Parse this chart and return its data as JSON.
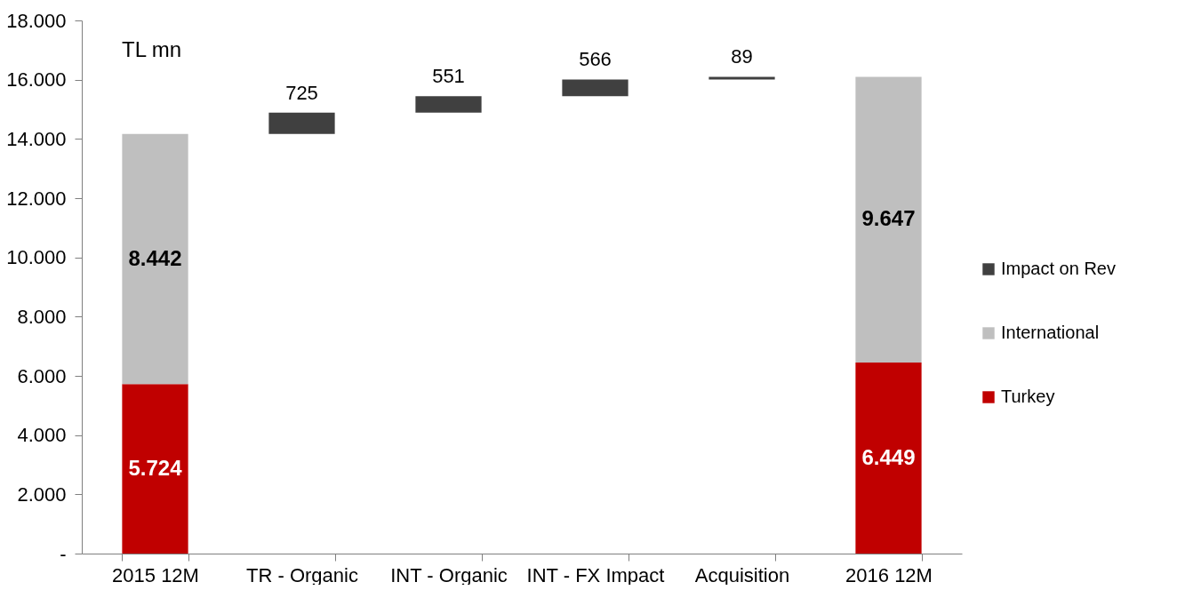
{
  "chart_data": {
    "type": "bar",
    "stacked": true,
    "categories": [
      "2015 12M",
      "TR - Organic",
      "INT - Organic",
      "INT - FX Impact",
      "Acquisition",
      "2016 12M"
    ],
    "series": [
      {
        "name": "Turkey",
        "color": "#c00000",
        "values": [
          5724,
          null,
          null,
          null,
          null,
          6449
        ],
        "value_labels": [
          "5.724",
          null,
          null,
          null,
          null,
          "6.449"
        ]
      },
      {
        "name": "International",
        "color": "#bfbfbf",
        "values": [
          8442,
          null,
          null,
          null,
          null,
          9647
        ],
        "value_labels": [
          "8.442",
          null,
          null,
          null,
          null,
          "9.647"
        ]
      },
      {
        "name": "Impact on Rev",
        "color": "#404040",
        "values": [
          null,
          725,
          551,
          566,
          89,
          null
        ],
        "base": [
          null,
          14166,
          14891,
          15442,
          16008,
          null
        ],
        "value_labels": [
          null,
          "725",
          "551",
          "566",
          "89",
          null
        ]
      }
    ],
    "ylim": [
      0,
      18000
    ],
    "yticks": [
      {
        "value": 0,
        "label": "-"
      },
      {
        "value": 2000,
        "label": "2.000"
      },
      {
        "value": 4000,
        "label": "4.000"
      },
      {
        "value": 6000,
        "label": "6.000"
      },
      {
        "value": 8000,
        "label": "8.000"
      },
      {
        "value": 10000,
        "label": "10.000"
      },
      {
        "value": 12000,
        "label": "12.000"
      },
      {
        "value": 14000,
        "label": "14.000"
      },
      {
        "value": 16000,
        "label": "16.000"
      },
      {
        "value": 18000,
        "label": "18.000"
      }
    ],
    "annotations": [
      "TL mn"
    ],
    "legend": "right",
    "grid": false
  }
}
